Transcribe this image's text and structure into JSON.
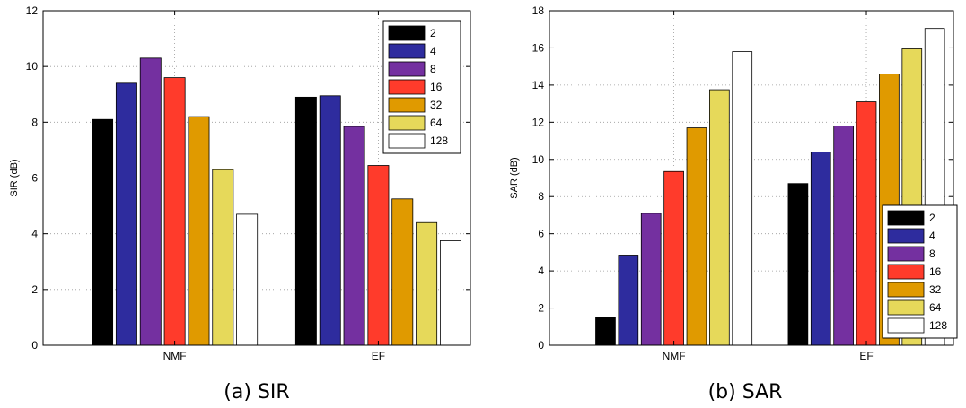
{
  "colors": {
    "2": "#000000",
    "4": "#2e2c9e",
    "8": "#7430a0",
    "16": "#ff3b2b",
    "32": "#e09a00",
    "64": "#e6d95a",
    "128": "#ffffff"
  },
  "chart_data": [
    {
      "type": "bar",
      "caption": "(a) SIR",
      "ylabel": "SIR (dB)",
      "categories": [
        "NMF",
        "EF"
      ],
      "ylim": [
        0,
        12
      ],
      "yticks": [
        0,
        2,
        4,
        6,
        8,
        10,
        12
      ],
      "grid": true,
      "legend_position": "top-right",
      "series": [
        {
          "name": "2",
          "values": [
            8.1,
            8.9
          ]
        },
        {
          "name": "4",
          "values": [
            9.4,
            8.95
          ]
        },
        {
          "name": "8",
          "values": [
            10.3,
            7.85
          ]
        },
        {
          "name": "16",
          "values": [
            9.6,
            6.45
          ]
        },
        {
          "name": "32",
          "values": [
            8.2,
            5.25
          ]
        },
        {
          "name": "64",
          "values": [
            6.3,
            4.4
          ]
        },
        {
          "name": "128",
          "values": [
            4.7,
            3.75
          ]
        }
      ]
    },
    {
      "type": "bar",
      "caption": "(b) SAR",
      "ylabel": "SAR (dB)",
      "categories": [
        "NMF",
        "EF"
      ],
      "ylim": [
        0,
        18
      ],
      "yticks": [
        0,
        2,
        4,
        6,
        8,
        10,
        12,
        14,
        16,
        18
      ],
      "grid": true,
      "legend_position": "bottom-right",
      "series": [
        {
          "name": "2",
          "values": [
            1.5,
            8.7
          ]
        },
        {
          "name": "4",
          "values": [
            4.85,
            10.4
          ]
        },
        {
          "name": "8",
          "values": [
            7.1,
            11.8
          ]
        },
        {
          "name": "16",
          "values": [
            9.35,
            13.1
          ]
        },
        {
          "name": "32",
          "values": [
            11.7,
            14.6
          ]
        },
        {
          "name": "64",
          "values": [
            13.75,
            15.95
          ]
        },
        {
          "name": "128",
          "values": [
            15.8,
            17.05
          ]
        }
      ]
    }
  ]
}
